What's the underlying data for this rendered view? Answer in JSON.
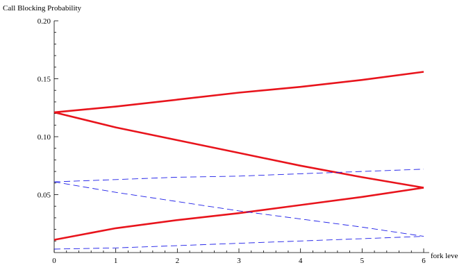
{
  "chart_data": {
    "type": "line",
    "title": "",
    "xlabel": "fork leve",
    "ylabel": "Call Blocking Probability",
    "xlim": [
      0,
      6
    ],
    "ylim": [
      0,
      0.2
    ],
    "x": [
      0,
      1,
      2,
      3,
      4,
      5,
      6
    ],
    "x_tick_labels": [
      "0",
      "1",
      "2",
      "3",
      "4",
      "5",
      "6"
    ],
    "y_ticks": [
      0.05,
      0.1,
      0.15,
      0.2
    ],
    "y_tick_labels": [
      "0.05",
      "0.10",
      "0.15",
      "0.20"
    ],
    "grid": false,
    "legend": "none",
    "series": [
      {
        "style": "solid",
        "color": "#e8141c",
        "values": [
          0.121,
          0.126,
          0.132,
          0.138,
          0.143,
          0.149,
          0.156
        ]
      },
      {
        "style": "solid",
        "color": "#e8141c",
        "values": [
          0.121,
          0.108,
          0.097,
          0.086,
          0.075,
          0.065,
          0.056
        ]
      },
      {
        "style": "solid",
        "color": "#e8141c",
        "values": [
          0.011,
          0.021,
          0.028,
          0.034,
          0.041,
          0.048,
          0.056
        ]
      },
      {
        "style": "dashed",
        "color": "#1c1ce8",
        "values": [
          0.061,
          0.063,
          0.065,
          0.066,
          0.068,
          0.07,
          0.072
        ]
      },
      {
        "style": "dashed",
        "color": "#1c1ce8",
        "values": [
          0.061,
          0.052,
          0.044,
          0.036,
          0.029,
          0.022,
          0.014
        ]
      },
      {
        "style": "dashed",
        "color": "#1c1ce8",
        "values": [
          0.003,
          0.004,
          0.006,
          0.008,
          0.01,
          0.012,
          0.014
        ]
      }
    ]
  }
}
